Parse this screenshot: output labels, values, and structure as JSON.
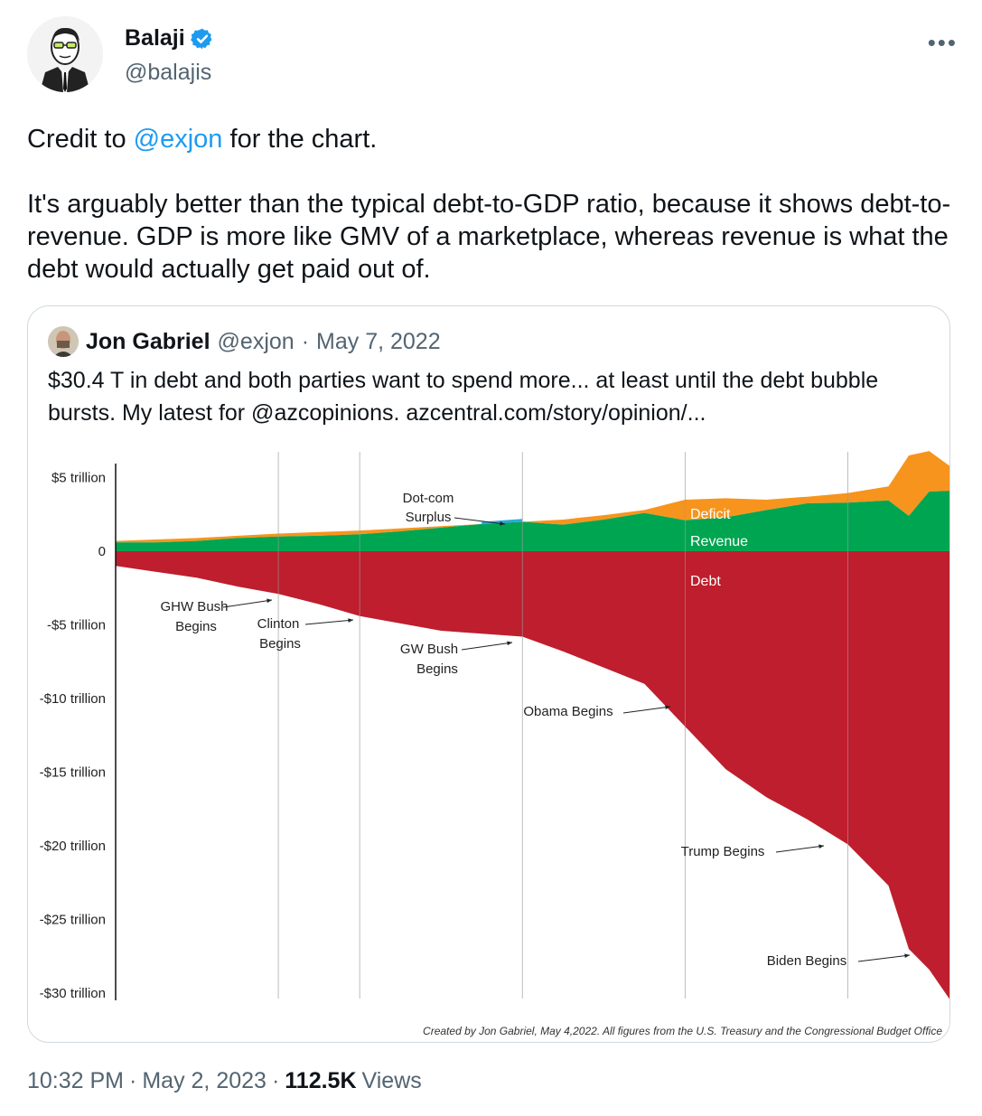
{
  "author": {
    "name": "Balaji",
    "handle": "@balajis"
  },
  "tweet": {
    "line1_prefix": "Credit to ",
    "line1_mention": "@exjon",
    "line1_suffix": " for the chart.",
    "paragraph2": "It's arguably better than the typical debt-to-GDP ratio, because it shows debt-to-revenue. GDP is more like GMV of a marketplace, whereas revenue is what the debt would actually get paid out of."
  },
  "quoted": {
    "name": "Jon Gabriel",
    "handle": "@exjon",
    "separator": "·",
    "date": "May 7, 2022",
    "text": "$30.4 T in debt and both parties want to spend more... at least until the debt bubble bursts. My latest for @azcopinions. azcentral.com/story/opinion/..."
  },
  "chart_data": {
    "type": "area",
    "title": "",
    "xlabel": "",
    "ylabel": "",
    "ylim": [
      -30,
      5
    ],
    "yticks": [
      {
        "v": 5,
        "label": "$5 trillion"
      },
      {
        "v": 0,
        "label": "0"
      },
      {
        "v": -5,
        "label": "-$5 trillion"
      },
      {
        "v": -10,
        "label": "-$10 trillion"
      },
      {
        "v": -15,
        "label": "-$15 trillion"
      },
      {
        "v": -20,
        "label": "-$20 trillion"
      },
      {
        "v": -25,
        "label": "-$25 trillion"
      },
      {
        "v": -30,
        "label": "-$30 trillion"
      }
    ],
    "x": [
      1981,
      1983,
      1985,
      1987,
      1989,
      1991,
      1993,
      1995,
      1997,
      1999,
      2001,
      2003,
      2005,
      2007,
      2009,
      2011,
      2013,
      2015,
      2017,
      2019,
      2020,
      2021,
      2022
    ],
    "series": [
      {
        "name": "Revenue",
        "color": "#00a551",
        "values": [
          0.6,
          0.6,
          0.7,
          0.9,
          1.0,
          1.05,
          1.15,
          1.35,
          1.6,
          1.85,
          2.0,
          1.8,
          2.15,
          2.6,
          2.1,
          2.3,
          2.8,
          3.25,
          3.3,
          3.45,
          2.4,
          4.05,
          4.1
        ]
      },
      {
        "name": "Deficit",
        "color": "#f7941d",
        "values": [
          0.7,
          0.8,
          0.9,
          1.05,
          1.2,
          1.3,
          1.4,
          1.55,
          1.7,
          1.85,
          2.0,
          2.15,
          2.45,
          2.8,
          3.5,
          3.6,
          3.5,
          3.7,
          3.95,
          4.4,
          6.5,
          6.8,
          5.8
        ]
      },
      {
        "name": "Debt",
        "color": "#be1e2d",
        "values": [
          -1.0,
          -1.4,
          -1.8,
          -2.4,
          -2.9,
          -3.6,
          -4.4,
          -4.9,
          -5.4,
          -5.6,
          -5.8,
          -6.8,
          -7.9,
          -9.0,
          -11.9,
          -14.8,
          -16.7,
          -18.2,
          -19.9,
          -22.7,
          -27.0,
          -28.4,
          -30.4
        ]
      },
      {
        "name": "Surplus",
        "color": "#27aae1",
        "values": [
          0,
          0,
          0,
          0,
          0,
          0,
          0,
          0,
          0,
          1.9,
          2.1,
          0,
          0,
          0,
          0,
          0,
          0,
          0,
          0,
          0,
          0,
          0,
          0
        ]
      }
    ],
    "series_labels": {
      "deficit": "Deficit",
      "revenue": "Revenue",
      "debt": "Debt"
    },
    "annotations": {
      "dotcom": [
        "Dot-com",
        "Surplus"
      ],
      "ghw": [
        "GHW Bush",
        "Begins"
      ],
      "clinton": [
        "Clinton",
        "Begins"
      ],
      "gw": [
        "GW Bush",
        "Begins"
      ],
      "obama": "Obama Begins",
      "trump": "Trump Begins",
      "biden": "Biden Begins"
    },
    "credit": "Created by Jon Gabriel, May 4,2022. All figures from the U.S. Treasury and the Congressional Budget Office",
    "grid": "vertical lines at presidency starts",
    "legend": "inline labels"
  },
  "footer": {
    "time": "10:32 PM",
    "sep1": "·",
    "date": "May 2, 2023",
    "sep2": "·",
    "views": "112.5K",
    "views_label": "Views"
  }
}
